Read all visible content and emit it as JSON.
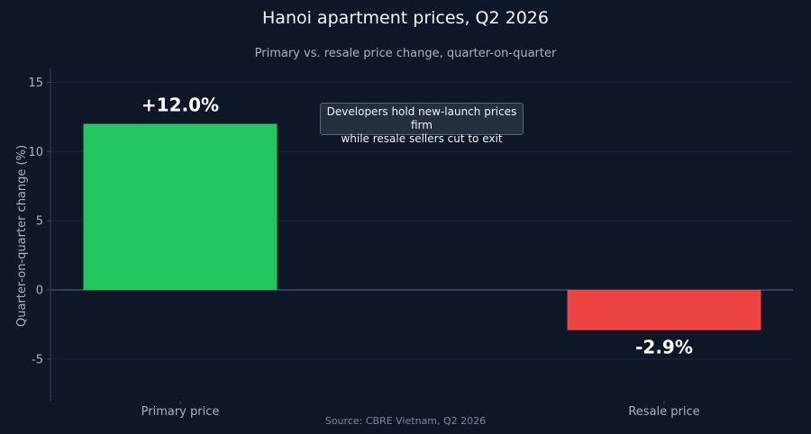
{
  "chart_data": {
    "type": "bar",
    "title": "Hanoi apartment prices, Q2 2026",
    "subtitle": "Primary vs. resale price change, quarter-on-quarter",
    "ylabel": "Quarter-on-quarter change (%)",
    "xlabel": "",
    "categories": [
      "Primary price",
      "Resale price"
    ],
    "values": [
      12.0,
      -2.9
    ],
    "value_labels": [
      "+12.0%",
      "-2.9%"
    ],
    "colors": [
      "#22c55e",
      "#ef4444"
    ],
    "ylim": [
      -8,
      16
    ],
    "yticks": [
      -5,
      0,
      5,
      10,
      15
    ],
    "ytick_labels": [
      "-5",
      "0",
      "5",
      "10",
      "15"
    ],
    "grid": true,
    "annotation": {
      "line1": "Developers hold new-launch prices firm",
      "line2": "while resale sellers cut to exit"
    },
    "source": "Source: CBRE Vietnam, Q2 2026"
  },
  "colors": {
    "background": "#0d1728",
    "grid": "#1c2940",
    "axis": "#3a475c",
    "tick_text": "#aab3c2"
  }
}
